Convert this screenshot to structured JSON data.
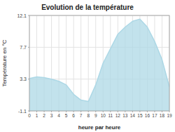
{
  "chart_data": {
    "type": "area",
    "title": "Evolution de la température",
    "xlabel": "heure par heure",
    "ylabel": "Température en °C",
    "x": [
      0,
      1,
      2,
      3,
      4,
      5,
      6,
      7,
      8,
      9,
      10,
      11,
      12,
      13,
      14,
      15,
      16,
      17,
      18,
      19
    ],
    "values": [
      3.4,
      3.6,
      3.5,
      3.3,
      3.0,
      2.5,
      1.2,
      0.4,
      0.2,
      2.5,
      5.5,
      7.5,
      9.5,
      10.5,
      11.3,
      11.6,
      10.5,
      8.5,
      6.0,
      2.2
    ],
    "xlim": [
      0,
      19
    ],
    "ylim": [
      -1.1,
      12.1
    ],
    "xticks": [
      0,
      1,
      2,
      3,
      4,
      5,
      6,
      7,
      8,
      9,
      10,
      11,
      12,
      13,
      14,
      15,
      16,
      17,
      18,
      19
    ],
    "yticks": [
      -1.1,
      3.3,
      7.7,
      12.1
    ],
    "grid": true,
    "color": "#add8e6"
  }
}
